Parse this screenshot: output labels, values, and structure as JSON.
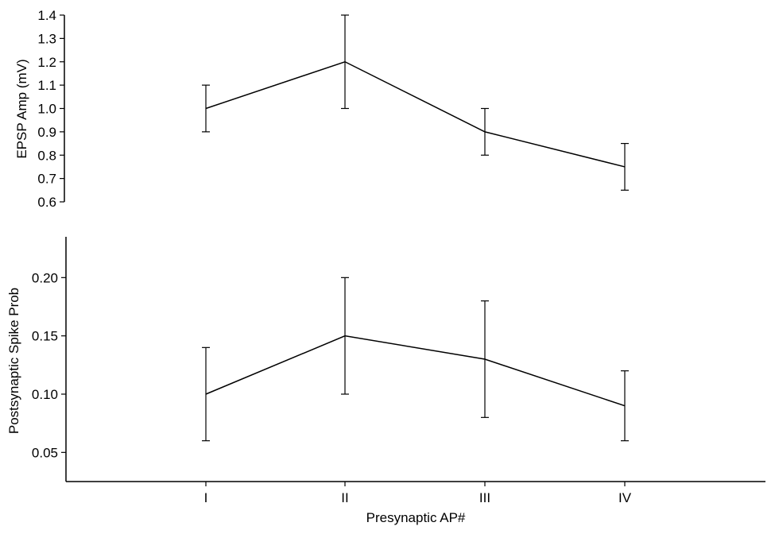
{
  "chart_data": [
    {
      "type": "line",
      "categories": [
        "I",
        "II",
        "III",
        "IV"
      ],
      "values": [
        1.0,
        1.2,
        0.9,
        0.75
      ],
      "error_low": [
        0.9,
        1.0,
        0.8,
        0.65
      ],
      "error_high": [
        1.1,
        1.4,
        1.0,
        0.85
      ],
      "ylabel": "EPSP Amp (mV)",
      "ylim": [
        0.6,
        1.4
      ],
      "yticks": [
        "0.6",
        "0.7",
        "0.8",
        "0.9",
        "1.0",
        "1.1",
        "1.2",
        "1.3",
        "1.4"
      ],
      "grid": false
    },
    {
      "type": "line",
      "categories": [
        "I",
        "II",
        "III",
        "IV"
      ],
      "values": [
        0.1,
        0.15,
        0.13,
        0.09
      ],
      "error_low": [
        0.06,
        0.1,
        0.08,
        0.06
      ],
      "error_high": [
        0.14,
        0.2,
        0.18,
        0.12
      ],
      "xlabel": "Presynaptic AP#",
      "ylabel": "Postsynaptic Spike Prob",
      "ylim": [
        0.025,
        0.235
      ],
      "yticks": [
        "0.05",
        "0.10",
        "0.15",
        "0.20"
      ],
      "grid": false
    }
  ]
}
